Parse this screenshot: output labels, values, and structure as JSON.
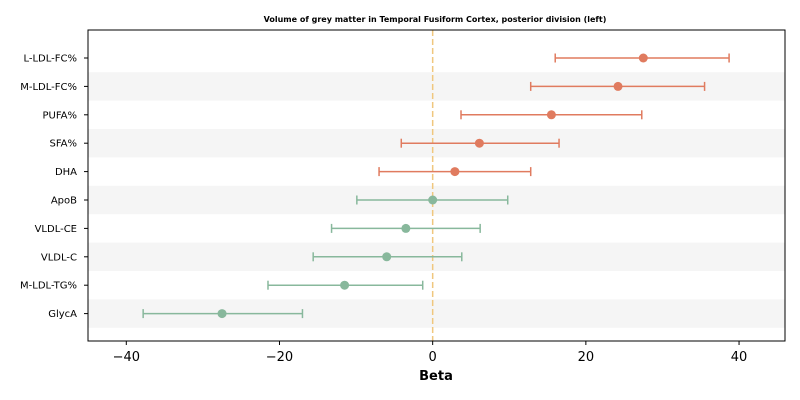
{
  "chart_data": {
    "type": "forest",
    "title": "Volume of grey matter in Temporal Fusiform Cortex, posterior division (left)",
    "xlabel": "Beta",
    "xlim": [
      -45,
      46
    ],
    "xticks": [
      -40,
      -20,
      0,
      20,
      40
    ],
    "xtick_labels": [
      "−40",
      "−20",
      "0",
      "20",
      "40"
    ],
    "reference_line": 0,
    "colors": {
      "positive": "#e07b5f",
      "negative": "#88b89c",
      "reference": "#f0c77e",
      "band": "#f5f5f5"
    },
    "rows": [
      {
        "label": "L-LDL-FC%",
        "beta": 27.5,
        "lo": 16.0,
        "hi": 38.7
      },
      {
        "label": "M-LDL-FC%",
        "beta": 24.2,
        "lo": 12.8,
        "hi": 35.5
      },
      {
        "label": "PUFA%",
        "beta": 15.5,
        "lo": 3.7,
        "hi": 27.3
      },
      {
        "label": "SFA%",
        "beta": 6.1,
        "lo": -4.1,
        "hi": 16.5
      },
      {
        "label": "DHA",
        "beta": 2.9,
        "lo": -7.0,
        "hi": 12.8
      },
      {
        "label": "ApoB",
        "beta": 0.0,
        "lo": -9.9,
        "hi": 9.8
      },
      {
        "label": "VLDL-CE",
        "beta": -3.5,
        "lo": -13.2,
        "hi": 6.2
      },
      {
        "label": "VLDL-C",
        "beta": -6.0,
        "lo": -15.6,
        "hi": 3.8
      },
      {
        "label": "M-LDL-TG%",
        "beta": -11.5,
        "lo": -21.5,
        "hi": -1.3
      },
      {
        "label": "GlycA",
        "beta": -27.5,
        "lo": -37.8,
        "hi": -17.0
      }
    ]
  }
}
